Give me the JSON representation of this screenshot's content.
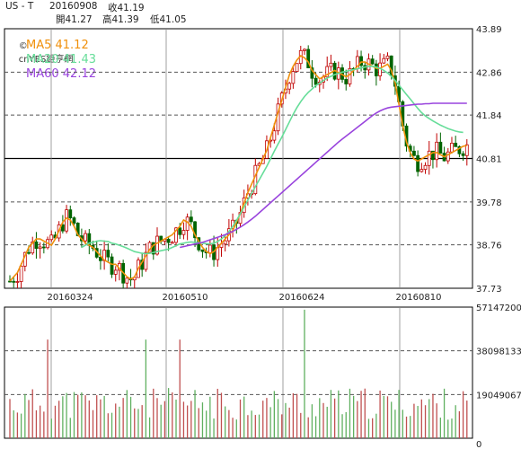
{
  "header": {
    "symbol": "US - T",
    "date": "20160908",
    "close_label": "收41.19",
    "open_label": "開41.27",
    "high_label": "高41.39",
    "low_label": "低41.05"
  },
  "brand": {
    "label": "cnYES鉅亨網",
    "icon": "copyright-icon"
  },
  "colors": {
    "up": "#c00000",
    "down": "#006400",
    "ma5": "#f0900a",
    "ma20": "#66dd99",
    "ma60": "#9944dd",
    "vol_up": "#c05050",
    "vol_down": "#60b060",
    "frame": "#000000",
    "dash": "#555555"
  },
  "chart_data": [
    {
      "type": "candlestick",
      "title": "",
      "y_ticks": [
        "43.89",
        "42.86",
        "41.84",
        "40.81",
        "39.78",
        "38.76",
        "37.73"
      ],
      "ylim": [
        37.73,
        43.89
      ],
      "x_ticks": [
        "20160324",
        "20160510",
        "20160624",
        "20160810"
      ],
      "legend": [
        {
          "name": "MA5",
          "value": "41.12",
          "label": "MA5 41.12"
        },
        {
          "name": "MA20",
          "value": "41.43",
          "label": "MA20 41.43"
        },
        {
          "name": "MA60",
          "value": "42.12",
          "label": "MA60 42.12"
        }
      ],
      "series": [
        {
          "name": "MA5",
          "values": [
            37.9,
            38.0,
            38.1,
            38.3,
            38.5,
            38.7,
            38.8,
            38.9,
            38.9,
            38.85,
            38.8,
            38.75,
            38.9,
            39.1,
            39.3,
            39.4,
            39.35,
            39.2,
            39.0,
            38.9,
            38.8,
            38.75,
            38.7,
            38.6,
            38.5,
            38.4,
            38.35,
            38.3,
            38.3,
            38.2,
            38.1,
            38.0,
            37.95,
            38.0,
            38.2,
            38.35,
            38.5,
            38.65,
            38.75,
            38.8,
            38.85,
            38.9,
            38.95,
            39.0,
            39.1,
            39.2,
            39.35,
            39.3,
            39.2,
            39.0,
            38.85,
            38.7,
            38.6,
            38.55,
            38.6,
            38.7,
            38.8,
            38.9,
            39.0,
            39.1,
            39.3,
            39.5,
            39.75,
            40.0,
            40.2,
            40.4,
            40.6,
            40.8,
            41.0,
            41.3,
            41.6,
            41.9,
            42.2,
            42.5,
            42.8,
            43.0,
            43.15,
            43.25,
            43.2,
            43.1,
            42.9,
            42.8,
            42.7,
            42.75,
            42.8,
            42.85,
            42.9,
            42.85,
            42.8,
            42.75,
            42.8,
            42.9,
            43.0,
            43.1,
            43.1,
            43.05,
            43.0,
            42.95,
            42.95,
            43.0,
            43.05,
            42.9,
            42.6,
            42.1,
            41.6,
            41.2,
            40.95,
            40.8,
            40.75,
            40.8,
            40.85,
            40.9,
            40.95,
            40.95,
            40.9,
            40.85,
            40.9,
            40.95,
            41.0,
            41.05,
            41.1,
            41.12
          ]
        },
        {
          "name": "MA20",
          "values": [
            null,
            null,
            null,
            null,
            null,
            null,
            null,
            null,
            null,
            null,
            null,
            null,
            null,
            null,
            null,
            null,
            null,
            null,
            null,
            38.7,
            38.75,
            38.8,
            38.82,
            38.85,
            38.86,
            38.85,
            38.84,
            38.8,
            38.78,
            38.75,
            38.72,
            38.68,
            38.64,
            38.6,
            38.58,
            38.56,
            38.55,
            38.56,
            38.58,
            38.6,
            38.62,
            38.64,
            38.66,
            38.7,
            38.74,
            38.78,
            38.8,
            38.82,
            38.83,
            38.82,
            38.81,
            38.8,
            38.79,
            38.78,
            38.8,
            38.84,
            38.9,
            38.98,
            39.08,
            39.2,
            39.34,
            39.5,
            39.66,
            39.82,
            39.98,
            40.14,
            40.3,
            40.46,
            40.62,
            40.8,
            40.98,
            41.15,
            41.32,
            41.5,
            41.68,
            41.86,
            42.02,
            42.16,
            42.28,
            42.38,
            42.46,
            42.54,
            42.6,
            42.66,
            42.72,
            42.76,
            42.8,
            42.83,
            42.86,
            42.88,
            42.9,
            42.92,
            42.94,
            42.96,
            42.98,
            43.0,
            43.0,
            42.98,
            42.95,
            42.9,
            42.84,
            42.76,
            42.66,
            42.55,
            42.44,
            42.33,
            42.22,
            42.11,
            42.0,
            41.9,
            41.82,
            41.76,
            41.7,
            41.65,
            41.6,
            41.56,
            41.52,
            41.49,
            41.46,
            41.44,
            41.43
          ]
        },
        {
          "name": "MA60",
          "values": [
            null,
            null,
            null,
            null,
            null,
            null,
            null,
            null,
            null,
            null,
            null,
            null,
            null,
            null,
            null,
            null,
            null,
            null,
            null,
            null,
            null,
            null,
            null,
            null,
            null,
            null,
            null,
            null,
            null,
            null,
            null,
            null,
            null,
            null,
            null,
            null,
            null,
            null,
            null,
            null,
            null,
            null,
            null,
            null,
            null,
            38.7,
            38.72,
            38.74,
            38.76,
            38.78,
            38.8,
            38.82,
            38.85,
            38.88,
            38.91,
            38.94,
            38.97,
            39.0,
            39.04,
            39.08,
            39.13,
            39.18,
            39.24,
            39.3,
            39.37,
            39.44,
            39.52,
            39.6,
            39.68,
            39.76,
            39.84,
            39.92,
            40.0,
            40.08,
            40.16,
            40.24,
            40.32,
            40.4,
            40.48,
            40.56,
            40.64,
            40.72,
            40.8,
            40.88,
            40.96,
            41.04,
            41.12,
            41.2,
            41.27,
            41.34,
            41.41,
            41.48,
            41.55,
            41.62,
            41.69,
            41.76,
            41.83,
            41.89,
            41.94,
            41.98,
            42.01,
            42.03,
            42.04,
            42.05,
            42.06,
            42.07,
            42.08,
            42.09,
            42.1,
            42.1,
            42.11,
            42.11,
            42.12,
            42.12,
            42.12,
            42.12,
            42.12,
            42.12,
            42.12,
            42.12,
            42.12,
            42.12
          ]
        }
      ]
    },
    {
      "type": "bar",
      "title": "",
      "y_ticks": [
        "57147200",
        "38098133",
        "19049067",
        "0"
      ],
      "ylim": [
        0,
        57147200
      ]
    }
  ]
}
